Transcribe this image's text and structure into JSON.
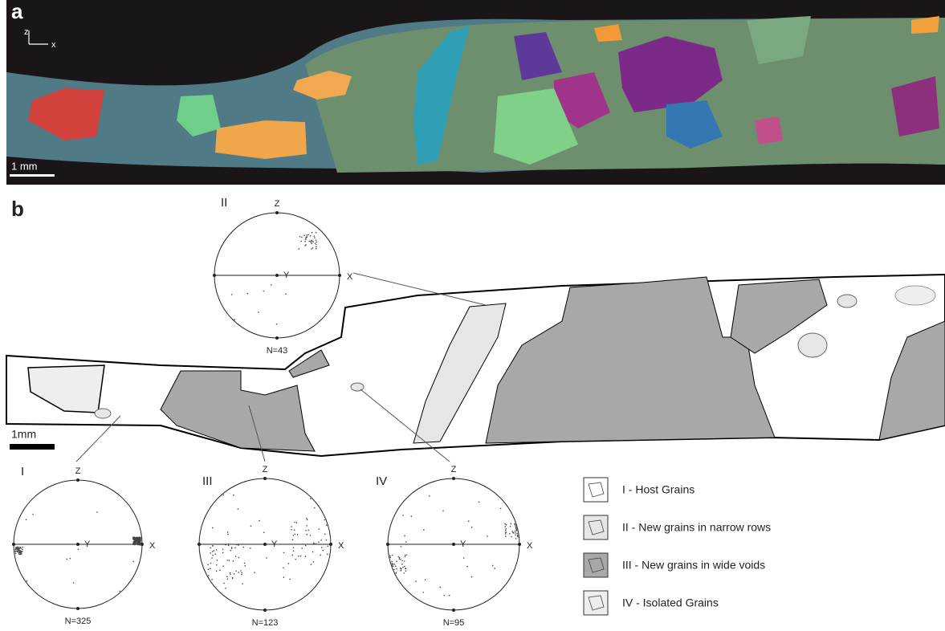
{
  "panel_a": {
    "label": "a",
    "axis_z": "z",
    "axis_x": "x",
    "scale_bar": "1 mm"
  },
  "panel_b": {
    "label": "b",
    "scale_bar": "1mm",
    "stereonets": [
      {
        "label": "II",
        "z": "Z",
        "y": "Y",
        "x": "X",
        "n": "N=43"
      },
      {
        "label": "I",
        "z": "Z",
        "y": "Y",
        "x": "X",
        "n": "N=325"
      },
      {
        "label": "III",
        "z": "Z",
        "y": "Y",
        "x": "X",
        "n": "N=123"
      },
      {
        "label": "IV",
        "z": "Z",
        "y": "Y",
        "x": "X",
        "n": "N=95"
      }
    ],
    "legend": [
      "I - Host Grains",
      "II - New grains in narrow rows",
      "III - New grains in wide voids",
      "IV - Isolated Grains"
    ]
  }
}
